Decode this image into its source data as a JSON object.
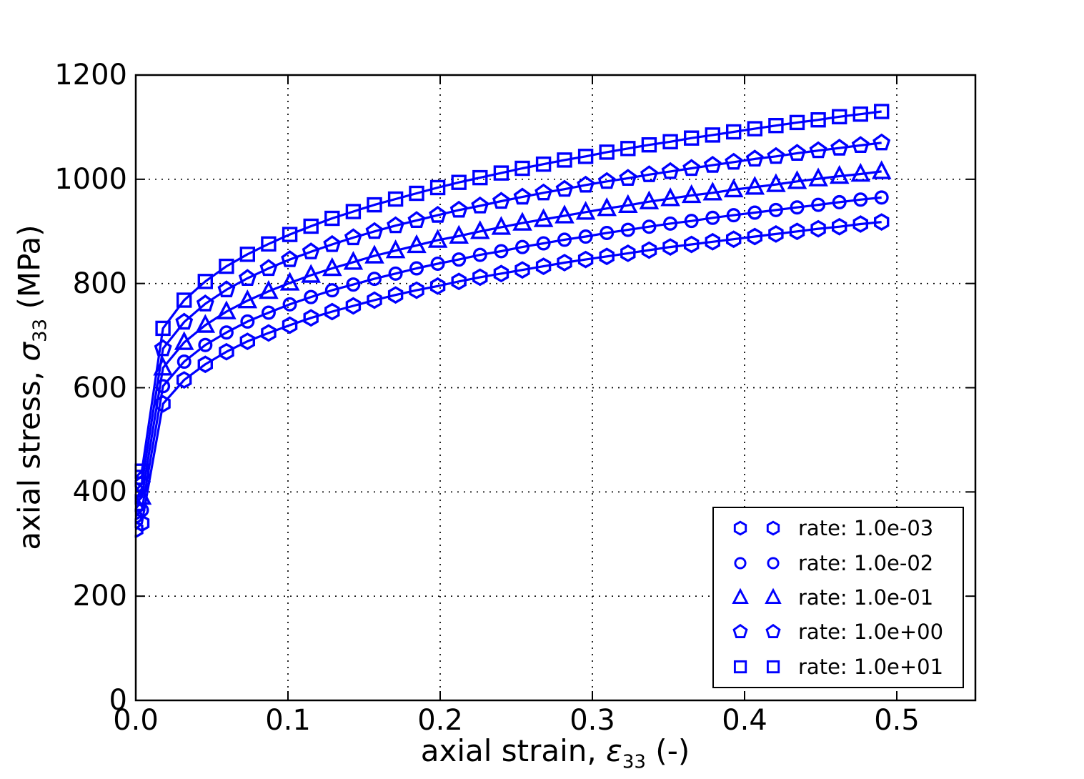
{
  "figure": {
    "background": "#ffffff",
    "series_color": "#0000ff",
    "frame_color": "#000000",
    "grid_color": "#000000",
    "text_color": "#000000"
  },
  "axes": {
    "xlabel_parts": {
      "prefix": "axial strain, ",
      "symbol": "ε",
      "sub": "33",
      "suffix": " (-)"
    },
    "ylabel_parts": {
      "prefix": "axial stress, ",
      "symbol": "σ",
      "sub": "33",
      "suffix": " (MPa)"
    },
    "x_ticks": [
      {
        "v": 0.0,
        "label": "0.0"
      },
      {
        "v": 0.1,
        "label": "0.1"
      },
      {
        "v": 0.2,
        "label": "0.2"
      },
      {
        "v": 0.3,
        "label": "0.3"
      },
      {
        "v": 0.4,
        "label": "0.4"
      },
      {
        "v": 0.5,
        "label": "0.5"
      }
    ],
    "y_ticks": [
      {
        "v": 0,
        "label": "0"
      },
      {
        "v": 200,
        "label": "200"
      },
      {
        "v": 400,
        "label": "400"
      },
      {
        "v": 600,
        "label": "600"
      },
      {
        "v": 800,
        "label": "800"
      },
      {
        "v": 1000,
        "label": "1000"
      },
      {
        "v": 1200,
        "label": "1200"
      }
    ],
    "xlim": [
      0,
      0.55
    ],
    "ylim": [
      0,
      1200
    ]
  },
  "legend": {
    "items": [
      {
        "marker": "hexagon",
        "label": "rate: 1.0e-03"
      },
      {
        "marker": "circle",
        "label": "rate: 1.0e-02"
      },
      {
        "marker": "triangle",
        "label": "rate: 1.0e-01"
      },
      {
        "marker": "pentagon",
        "label": "rate: 1.0e+00"
      },
      {
        "marker": "square",
        "label": "rate: 1.0e+01"
      }
    ]
  },
  "chart_data": {
    "type": "line",
    "title": "",
    "xlabel": "axial strain, ε33 (-)",
    "ylabel": "axial stress, σ33 (MPa)",
    "xlim": [
      0,
      0.55
    ],
    "ylim": [
      0,
      1200
    ],
    "grid": true,
    "grid_style": "dotted",
    "legend_position": "lower right",
    "x": [
      0.0,
      0.004,
      0.0179,
      0.0318,
      0.0457,
      0.0596,
      0.0734,
      0.0873,
      0.1012,
      0.1151,
      0.129,
      0.1429,
      0.1568,
      0.1707,
      0.1845,
      0.1984,
      0.2123,
      0.2262,
      0.2401,
      0.254,
      0.2679,
      0.2817,
      0.2956,
      0.3095,
      0.3234,
      0.3373,
      0.3512,
      0.3651,
      0.379,
      0.3928,
      0.4067,
      0.4206,
      0.4345,
      0.4484,
      0.4623,
      0.4762,
      0.49
    ],
    "series": [
      {
        "name": "rate: 1.0e-03",
        "marker": "hexagon",
        "values": [
          328,
          340,
          569,
          615,
          645,
          669,
          689,
          705,
          720,
          734,
          746,
          757,
          768,
          778,
          787,
          795,
          804,
          812,
          819,
          826,
          833,
          840,
          846,
          852,
          858,
          864,
          870,
          875,
          880,
          885,
          890,
          895,
          900,
          905,
          909,
          914,
          918
        ]
      },
      {
        "name": "rate: 1.0e-02",
        "marker": "circle",
        "values": [
          353,
          365,
          603,
          650,
          682,
          706,
          727,
          744,
          760,
          774,
          787,
          798,
          809,
          819,
          829,
          838,
          846,
          855,
          862,
          870,
          877,
          884,
          890,
          897,
          903,
          909,
          915,
          920,
          926,
          931,
          936,
          941,
          946,
          951,
          956,
          961,
          965
        ]
      },
      {
        "name": "rate: 1.0e-01",
        "marker": "triangle",
        "values": [
          378,
          390,
          638,
          687,
          720,
          746,
          767,
          785,
          801,
          816,
          829,
          841,
          853,
          863,
          873,
          883,
          891,
          900,
          908,
          916,
          923,
          930,
          937,
          944,
          950,
          957,
          963,
          969,
          974,
          980,
          985,
          990,
          996,
          1001,
          1006,
          1010,
          1015
        ]
      },
      {
        "name": "rate: 1.0e+00",
        "marker": "pentagon",
        "values": [
          403,
          415,
          675,
          726,
          761,
          788,
          810,
          829,
          846,
          861,
          875,
          888,
          900,
          911,
          921,
          931,
          941,
          949,
          958,
          966,
          974,
          981,
          989,
          996,
          1002,
          1009,
          1015,
          1021,
          1027,
          1033,
          1039,
          1044,
          1050,
          1055,
          1060,
          1065,
          1070
        ]
      },
      {
        "name": "rate: 1.0e+01",
        "marker": "square",
        "values": [
          428,
          440,
          714,
          768,
          804,
          833,
          856,
          876,
          894,
          910,
          925,
          938,
          951,
          962,
          973,
          984,
          994,
          1003,
          1012,
          1021,
          1029,
          1037,
          1044,
          1052,
          1059,
          1066,
          1072,
          1079,
          1085,
          1091,
          1097,
          1103,
          1109,
          1114,
          1120,
          1125,
          1130
        ]
      }
    ]
  }
}
